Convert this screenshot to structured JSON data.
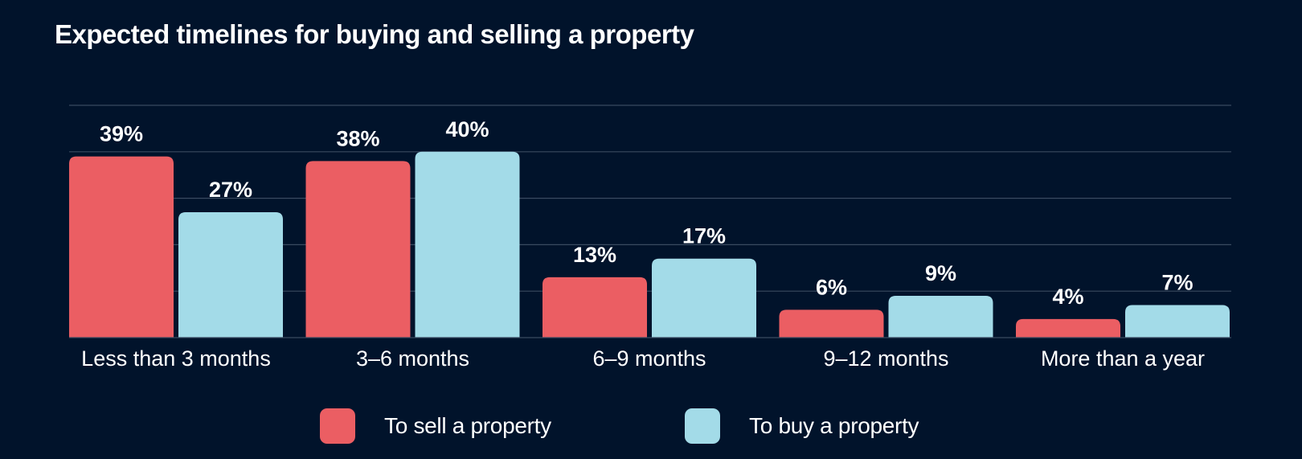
{
  "chart_data": {
    "type": "bar",
    "title": "Expected timelines for buying and selling a property",
    "categories": [
      "Less than 3 months",
      "3–6 months",
      "6–9 months",
      "9–12 months",
      "More than a year"
    ],
    "series": [
      {
        "name": "To sell a property",
        "values": [
          39,
          38,
          13,
          6,
          4
        ],
        "color": "#eb5e63",
        "labels": [
          "39%",
          "38%",
          "13%",
          "6%",
          "4%"
        ]
      },
      {
        "name": "To buy a property",
        "values": [
          27,
          40,
          17,
          9,
          7
        ],
        "color": "#a3dbe8",
        "labels": [
          "27%",
          "40%",
          "17%",
          "9%",
          "7%"
        ]
      }
    ],
    "xlabel": "",
    "ylabel": "",
    "ylim": [
      0,
      50
    ],
    "grid": true,
    "legend_position": "bottom"
  },
  "colors": {
    "background": "#01132b",
    "gridline": "#3a4a60",
    "text": "#ffffff"
  }
}
